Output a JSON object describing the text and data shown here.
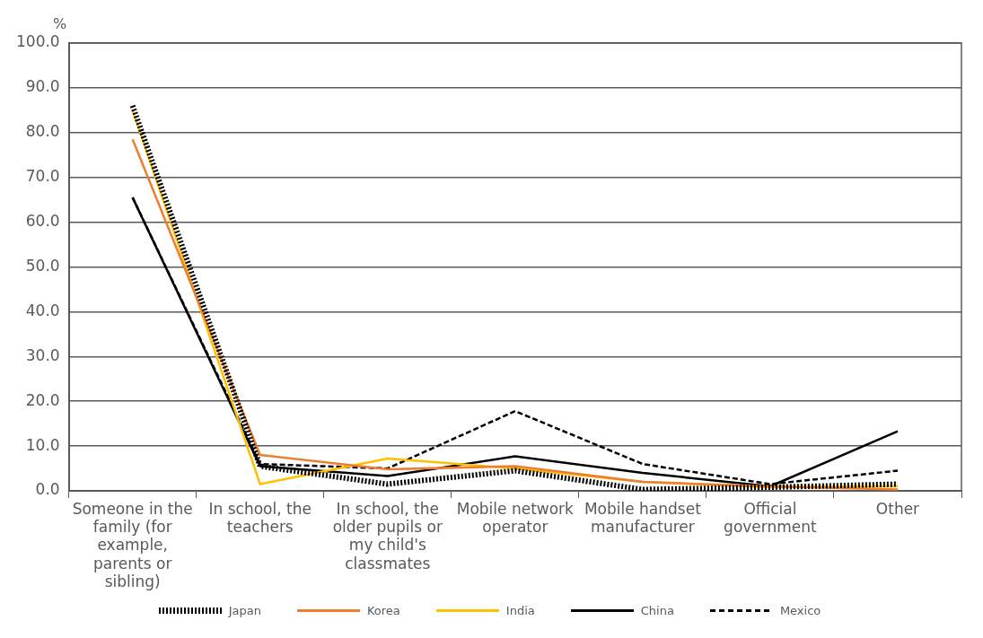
{
  "chart_data": {
    "type": "line",
    "ylabel": "%",
    "categories": [
      "Someone in the family (for example, parents or sibling)",
      "In school, the teachers",
      "In school, the older pupils or my child's classmates",
      "Mobile network operator",
      "Mobile handset manufacturer",
      "Official government",
      "Other"
    ],
    "series": [
      {
        "name": "Japan",
        "color": "#000000",
        "line_style": "dotted",
        "values": [
          86,
          5.5,
          1.5,
          4.5,
          0.3,
          0.8,
          1.5
        ]
      },
      {
        "name": "Korea",
        "color": "#ed7d31",
        "line_style": "solid",
        "values": [
          78.5,
          8,
          4.8,
          5.5,
          2,
          1,
          0.3
        ]
      },
      {
        "name": "India",
        "color": "#ffc000",
        "line_style": "solid",
        "values": [
          85,
          1.5,
          7.2,
          5,
          2,
          0.8,
          1
        ]
      },
      {
        "name": "China",
        "color": "#000000",
        "line_style": "solid",
        "values": [
          65.5,
          5.5,
          3.3,
          7.7,
          4,
          1,
          13.3
        ]
      },
      {
        "name": "Mexico",
        "color": "#000000",
        "line_style": "dashed",
        "values": [
          65.5,
          6,
          5,
          17.8,
          6,
          1.5,
          4.5
        ]
      }
    ],
    "ylim": [
      0,
      100
    ],
    "yticks": [
      {
        "value": 0,
        "label": "0.0"
      },
      {
        "value": 10,
        "label": "10.0"
      },
      {
        "value": 20,
        "label": "20.0"
      },
      {
        "value": 30,
        "label": "30.0"
      },
      {
        "value": 40,
        "label": "40.0"
      },
      {
        "value": 50,
        "label": "50.0"
      },
      {
        "value": 60,
        "label": "60.0"
      },
      {
        "value": 70,
        "label": "70.0"
      },
      {
        "value": 80,
        "label": "80.0"
      },
      {
        "value": 90,
        "label": "90.0"
      },
      {
        "value": 100,
        "label": "100.0"
      }
    ],
    "grid": "y",
    "legend": "bottom",
    "marker": "none"
  }
}
